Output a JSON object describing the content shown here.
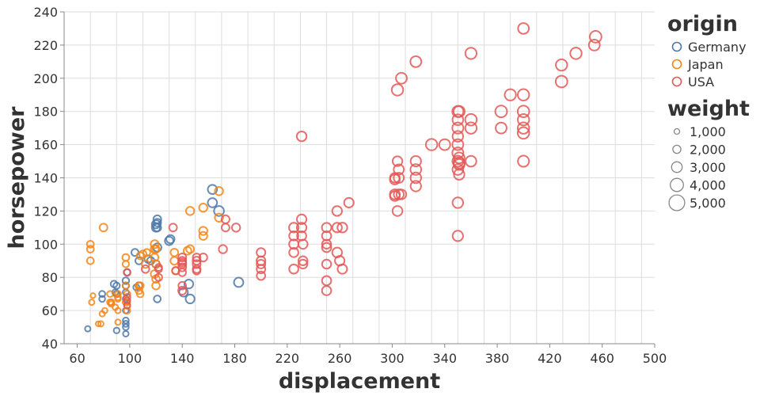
{
  "colors": {
    "Germany": "#4c78a8",
    "Japan": "#f58518",
    "USA": "#e45756",
    "size_legend": "#888888"
  },
  "chart_data": {
    "type": "scatter",
    "xlabel": "displacement",
    "ylabel": "horsepower",
    "xlim": [
      50,
      500
    ],
    "ylim": [
      40,
      240
    ],
    "x_ticks": [
      60,
      100,
      140,
      180,
      220,
      260,
      300,
      340,
      380,
      420,
      460,
      500
    ],
    "y_ticks": [
      40,
      60,
      80,
      100,
      120,
      140,
      160,
      180,
      200,
      220,
      240
    ],
    "x_grid_step": 20,
    "grid": true,
    "legend_placement": "right",
    "color_legend": {
      "title": "origin",
      "entries": [
        "Germany",
        "Japan",
        "USA"
      ]
    },
    "size_legend": {
      "title": "weight",
      "values": [
        1000,
        2000,
        3000,
        4000,
        5000
      ],
      "labels": [
        "1,000",
        "2,000",
        "3,000",
        "4,000",
        "5,000"
      ]
    },
    "series": [
      {
        "name": "Germany",
        "points": [
          [
            68,
            49,
            1800
          ],
          [
            79,
            67,
            1950
          ],
          [
            79,
            70,
            2000
          ],
          [
            88,
            76,
            2200
          ],
          [
            89,
            71,
            2000
          ],
          [
            90,
            48,
            1900
          ],
          [
            90,
            70,
            2100
          ],
          [
            90,
            75,
            2100
          ],
          [
            97,
            46,
            1850
          ],
          [
            97,
            54,
            1950
          ],
          [
            97,
            50,
            1950
          ],
          [
            97,
            60,
            1900
          ],
          [
            97,
            67,
            2000
          ],
          [
            97,
            71,
            2000
          ],
          [
            97,
            75,
            2100
          ],
          [
            97,
            78,
            2200
          ],
          [
            97,
            52,
            2000
          ],
          [
            98,
            83,
            2100
          ],
          [
            104,
            95,
            2400
          ],
          [
            105,
            74,
            2000
          ],
          [
            107,
            90,
            2400
          ],
          [
            107,
            75,
            2300
          ],
          [
            114,
            91,
            2550
          ],
          [
            116,
            90,
            2500
          ],
          [
            120,
            112,
            2900
          ],
          [
            120,
            88,
            2600
          ],
          [
            120,
            110,
            2900
          ],
          [
            121,
            115,
            2700
          ],
          [
            121,
            113,
            2600
          ],
          [
            121,
            110,
            2650
          ],
          [
            121,
            67,
            2300
          ],
          [
            121,
            98,
            2900
          ],
          [
            130,
            102,
            3000
          ],
          [
            131,
            103,
            2900
          ],
          [
            141,
            71,
            3100
          ],
          [
            145,
            76,
            3200
          ],
          [
            146,
            67,
            3250
          ],
          [
            163,
            133,
            3400
          ],
          [
            163,
            125,
            3400
          ],
          [
            168,
            120,
            3800
          ],
          [
            183,
            77,
            3500
          ]
        ]
      },
      {
        "name": "Japan",
        "points": [
          [
            70,
            90,
            2300
          ],
          [
            70,
            97,
            2300
          ],
          [
            70,
            100,
            2300
          ],
          [
            71,
            65,
            1800
          ],
          [
            72,
            69,
            1600
          ],
          [
            76,
            52,
            1650
          ],
          [
            78,
            52,
            1800
          ],
          [
            79,
            58,
            1750
          ],
          [
            80,
            110,
            2700
          ],
          [
            81,
            60,
            1750
          ],
          [
            85,
            65,
            1975
          ],
          [
            85,
            70,
            1990
          ],
          [
            86,
            65,
            1975
          ],
          [
            86,
            64,
            1875
          ],
          [
            89,
            62,
            1845
          ],
          [
            91,
            53,
            1800
          ],
          [
            91,
            60,
            1800
          ],
          [
            91,
            67,
            1850
          ],
          [
            91,
            68,
            1970
          ],
          [
            91,
            70,
            1990
          ],
          [
            97,
            65,
            2100
          ],
          [
            97,
            75,
            2150
          ],
          [
            97,
            88,
            2150
          ],
          [
            97,
            92,
            2300
          ],
          [
            98,
            60,
            2100
          ],
          [
            98,
            65,
            2050
          ],
          [
            98,
            70,
            2100
          ],
          [
            98,
            63,
            2050
          ],
          [
            107,
            72,
            2300
          ],
          [
            107,
            75,
            2300
          ],
          [
            108,
            70,
            2250
          ],
          [
            108,
            75,
            2300
          ],
          [
            108,
            93,
            2400
          ],
          [
            110,
            94,
            2500
          ],
          [
            112,
            88,
            2600
          ],
          [
            113,
            95,
            2300
          ],
          [
            119,
            82,
            2700
          ],
          [
            119,
            92,
            2600
          ],
          [
            119,
            97,
            2800
          ],
          [
            119,
            100,
            2800
          ],
          [
            120,
            75,
            2600
          ],
          [
            120,
            79,
            2600
          ],
          [
            120,
            88,
            2600
          ],
          [
            120,
            97,
            2500
          ],
          [
            134,
            90,
            2700
          ],
          [
            134,
            95,
            2600
          ],
          [
            135,
            84,
            2500
          ],
          [
            144,
            96,
            2700
          ],
          [
            146,
            97,
            2700
          ],
          [
            146,
            120,
            2900
          ],
          [
            156,
            105,
            2800
          ],
          [
            156,
            108,
            2900
          ],
          [
            156,
            122,
            2900
          ],
          [
            168,
            116,
            2900
          ],
          [
            168,
            132,
            2900
          ]
        ]
      },
      {
        "name": "USA",
        "points": [
          [
            98,
            63,
            2000
          ],
          [
            98,
            66,
            2100
          ],
          [
            98,
            68,
            2200
          ],
          [
            98,
            83,
            2300
          ],
          [
            112,
            85,
            2600
          ],
          [
            122,
            85,
            2300
          ],
          [
            122,
            80,
            2400
          ],
          [
            122,
            86,
            2300
          ],
          [
            133,
            110,
            2700
          ],
          [
            135,
            84,
            2400
          ],
          [
            140,
            72,
            2800
          ],
          [
            140,
            75,
            2600
          ],
          [
            140,
            86,
            2700
          ],
          [
            140,
            88,
            2800
          ],
          [
            140,
            89,
            2700
          ],
          [
            140,
            92,
            2800
          ],
          [
            140,
            83,
            2600
          ],
          [
            140,
            90,
            2700
          ],
          [
            151,
            84,
            2600
          ],
          [
            151,
            85,
            2700
          ],
          [
            151,
            88,
            2750
          ],
          [
            151,
            90,
            2800
          ],
          [
            151,
            92,
            2700
          ],
          [
            156,
            92,
            2800
          ],
          [
            171,
            97,
            2900
          ],
          [
            173,
            110,
            2700
          ],
          [
            173,
            115,
            2800
          ],
          [
            181,
            110,
            2900
          ],
          [
            200,
            85,
            3100
          ],
          [
            200,
            81,
            3000
          ],
          [
            200,
            88,
            3100
          ],
          [
            200,
            90,
            3200
          ],
          [
            200,
            95,
            3150
          ],
          [
            225,
            85,
            3400
          ],
          [
            225,
            95,
            3400
          ],
          [
            225,
            100,
            3500
          ],
          [
            225,
            105,
            3400
          ],
          [
            225,
            110,
            3600
          ],
          [
            231,
            105,
            3400
          ],
          [
            231,
            110,
            3600
          ],
          [
            231,
            115,
            3600
          ],
          [
            231,
            165,
            3700
          ],
          [
            232,
            90,
            3300
          ],
          [
            232,
            100,
            3400
          ],
          [
            232,
            88,
            3200
          ],
          [
            250,
            72,
            3400
          ],
          [
            250,
            78,
            3400
          ],
          [
            250,
            88,
            3300
          ],
          [
            250,
            98,
            3400
          ],
          [
            250,
            100,
            3300
          ],
          [
            250,
            105,
            3400
          ],
          [
            250,
            110,
            3500
          ],
          [
            258,
            95,
            3700
          ],
          [
            258,
            110,
            3600
          ],
          [
            258,
            120,
            3700
          ],
          [
            260,
            90,
            3600
          ],
          [
            262,
            85,
            3500
          ],
          [
            262,
            110,
            3700
          ],
          [
            267,
            125,
            3600
          ],
          [
            302,
            129,
            3700
          ],
          [
            302,
            130,
            3800
          ],
          [
            302,
            139,
            3800
          ],
          [
            302,
            140,
            3600
          ],
          [
            304,
            120,
            3800
          ],
          [
            304,
            150,
            3700
          ],
          [
            304,
            193,
            4700
          ],
          [
            305,
            130,
            3800
          ],
          [
            305,
            140,
            3900
          ],
          [
            305,
            145,
            3900
          ],
          [
            307,
            130,
            3700
          ],
          [
            307,
            200,
            4400
          ],
          [
            318,
            135,
            4100
          ],
          [
            318,
            140,
            4200
          ],
          [
            318,
            145,
            4300
          ],
          [
            318,
            150,
            4100
          ],
          [
            318,
            210,
            4400
          ],
          [
            330,
            160,
            4700
          ],
          [
            340,
            160,
            4400
          ],
          [
            350,
            105,
            4100
          ],
          [
            350,
            125,
            4200
          ],
          [
            350,
            145,
            4300
          ],
          [
            350,
            150,
            4400
          ],
          [
            350,
            155,
            4500
          ],
          [
            350,
            160,
            4400
          ],
          [
            350,
            165,
            4200
          ],
          [
            350,
            170,
            4500
          ],
          [
            350,
            175,
            4300
          ],
          [
            350,
            180,
            4500
          ],
          [
            351,
            142,
            4100
          ],
          [
            351,
            148,
            4300
          ],
          [
            351,
            149,
            4500
          ],
          [
            351,
            152,
            4300
          ],
          [
            351,
            180,
            4500
          ],
          [
            360,
            150,
            4300
          ],
          [
            360,
            170,
            4700
          ],
          [
            360,
            175,
            4800
          ],
          [
            360,
            215,
            4600
          ],
          [
            383,
            170,
            4400
          ],
          [
            383,
            180,
            4950
          ],
          [
            390,
            190,
            4600
          ],
          [
            400,
            150,
            4500
          ],
          [
            400,
            167,
            4800
          ],
          [
            400,
            170,
            4700
          ],
          [
            400,
            175,
            4700
          ],
          [
            400,
            180,
            4800
          ],
          [
            400,
            190,
            4700
          ],
          [
            400,
            230,
            4300
          ],
          [
            429,
            198,
            4900
          ],
          [
            429,
            208,
            4700
          ],
          [
            440,
            215,
            4700
          ],
          [
            454,
            220,
            4400
          ],
          [
            455,
            225,
            4900
          ]
        ]
      }
    ]
  }
}
